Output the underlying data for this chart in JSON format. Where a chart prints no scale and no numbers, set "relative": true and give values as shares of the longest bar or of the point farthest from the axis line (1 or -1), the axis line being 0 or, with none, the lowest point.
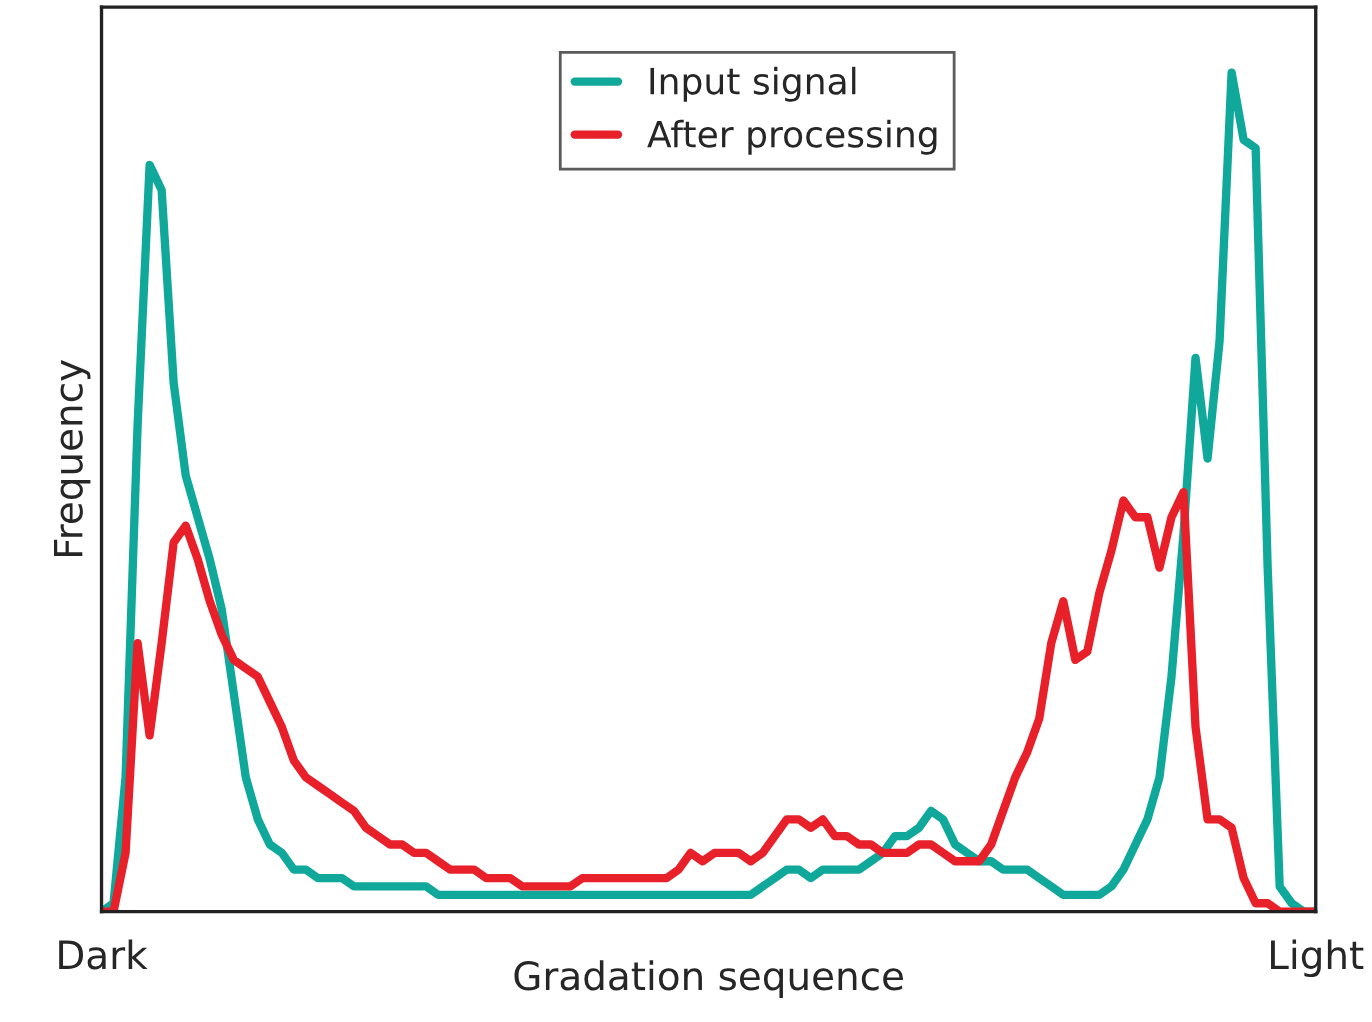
{
  "chart_data": {
    "type": "line",
    "relative": true,
    "xlabel": "Gradation sequence",
    "ylabel": "Frequency",
    "categories": [
      "Dark",
      null,
      null,
      null,
      null,
      null,
      null,
      null,
      null,
      null,
      null,
      null,
      null,
      null,
      null,
      null,
      null,
      null,
      null,
      null,
      null,
      null,
      null,
      null,
      null,
      null,
      null,
      null,
      null,
      null,
      null,
      null,
      null,
      null,
      null,
      null,
      null,
      null,
      null,
      null,
      null,
      null,
      null,
      null,
      null,
      null,
      null,
      null,
      null,
      null,
      null,
      null,
      null,
      null,
      null,
      null,
      null,
      null,
      null,
      null,
      null,
      null,
      null,
      null,
      null,
      null,
      null,
      null,
      null,
      null,
      null,
      null,
      null,
      null,
      null,
      null,
      null,
      null,
      null,
      null,
      null,
      null,
      null,
      null,
      null,
      null,
      null,
      null,
      null,
      null,
      null,
      null,
      null,
      null,
      null,
      null,
      null,
      null,
      null,
      null,
      null,
      "Light"
    ],
    "legend": "top",
    "marker": "none",
    "line_style": "solid",
    "series": [
      {
        "name": "Input signal",
        "color": "#0fa89a",
        "values": [
          0,
          0.01,
          0.16,
          0.58,
          0.89,
          0.86,
          0.63,
          0.52,
          0.47,
          0.42,
          0.36,
          0.26,
          0.16,
          0.11,
          0.08,
          0.07,
          0.05,
          0.05,
          0.04,
          0.04,
          0.04,
          0.03,
          0.03,
          0.03,
          0.03,
          0.03,
          0.03,
          0.03,
          0.02,
          0.02,
          0.02,
          0.02,
          0.02,
          0.02,
          0.02,
          0.02,
          0.02,
          0.02,
          0.02,
          0.02,
          0.02,
          0.02,
          0.02,
          0.02,
          0.02,
          0.02,
          0.02,
          0.02,
          0.02,
          0.02,
          0.02,
          0.02,
          0.02,
          0.02,
          0.02,
          0.03,
          0.04,
          0.05,
          0.05,
          0.04,
          0.05,
          0.05,
          0.05,
          0.05,
          0.06,
          0.07,
          0.09,
          0.09,
          0.1,
          0.12,
          0.11,
          0.08,
          0.07,
          0.06,
          0.06,
          0.05,
          0.05,
          0.05,
          0.04,
          0.03,
          0.02,
          0.02,
          0.02,
          0.02,
          0.03,
          0.05,
          0.08,
          0.11,
          0.16,
          0.28,
          0.45,
          0.66,
          0.54,
          0.68,
          1,
          0.92,
          0.91,
          0.41,
          0.03,
          0.01,
          0,
          0
        ]
      },
      {
        "name": "After processing",
        "color": "#e8202a",
        "values": [
          0,
          0,
          0.07,
          0.32,
          0.21,
          0.32,
          0.44,
          0.46,
          0.42,
          0.37,
          0.33,
          0.3,
          0.29,
          0.28,
          0.25,
          0.22,
          0.18,
          0.16,
          0.15,
          0.14,
          0.13,
          0.12,
          0.1,
          0.09,
          0.08,
          0.08,
          0.07,
          0.07,
          0.06,
          0.05,
          0.05,
          0.05,
          0.04,
          0.04,
          0.04,
          0.03,
          0.03,
          0.03,
          0.03,
          0.03,
          0.04,
          0.04,
          0.04,
          0.04,
          0.04,
          0.04,
          0.04,
          0.04,
          0.05,
          0.07,
          0.06,
          0.07,
          0.07,
          0.07,
          0.06,
          0.07,
          0.09,
          0.11,
          0.11,
          0.1,
          0.11,
          0.09,
          0.09,
          0.08,
          0.08,
          0.07,
          0.07,
          0.07,
          0.08,
          0.08,
          0.07,
          0.06,
          0.06,
          0.06,
          0.08,
          0.12,
          0.16,
          0.19,
          0.23,
          0.32,
          0.37,
          0.3,
          0.31,
          0.38,
          0.43,
          0.49,
          0.47,
          0.47,
          0.41,
          0.47,
          0.5,
          0.22,
          0.11,
          0.11,
          0.1,
          0.04,
          0.01,
          0.01,
          0,
          0,
          0,
          0
        ]
      }
    ]
  }
}
